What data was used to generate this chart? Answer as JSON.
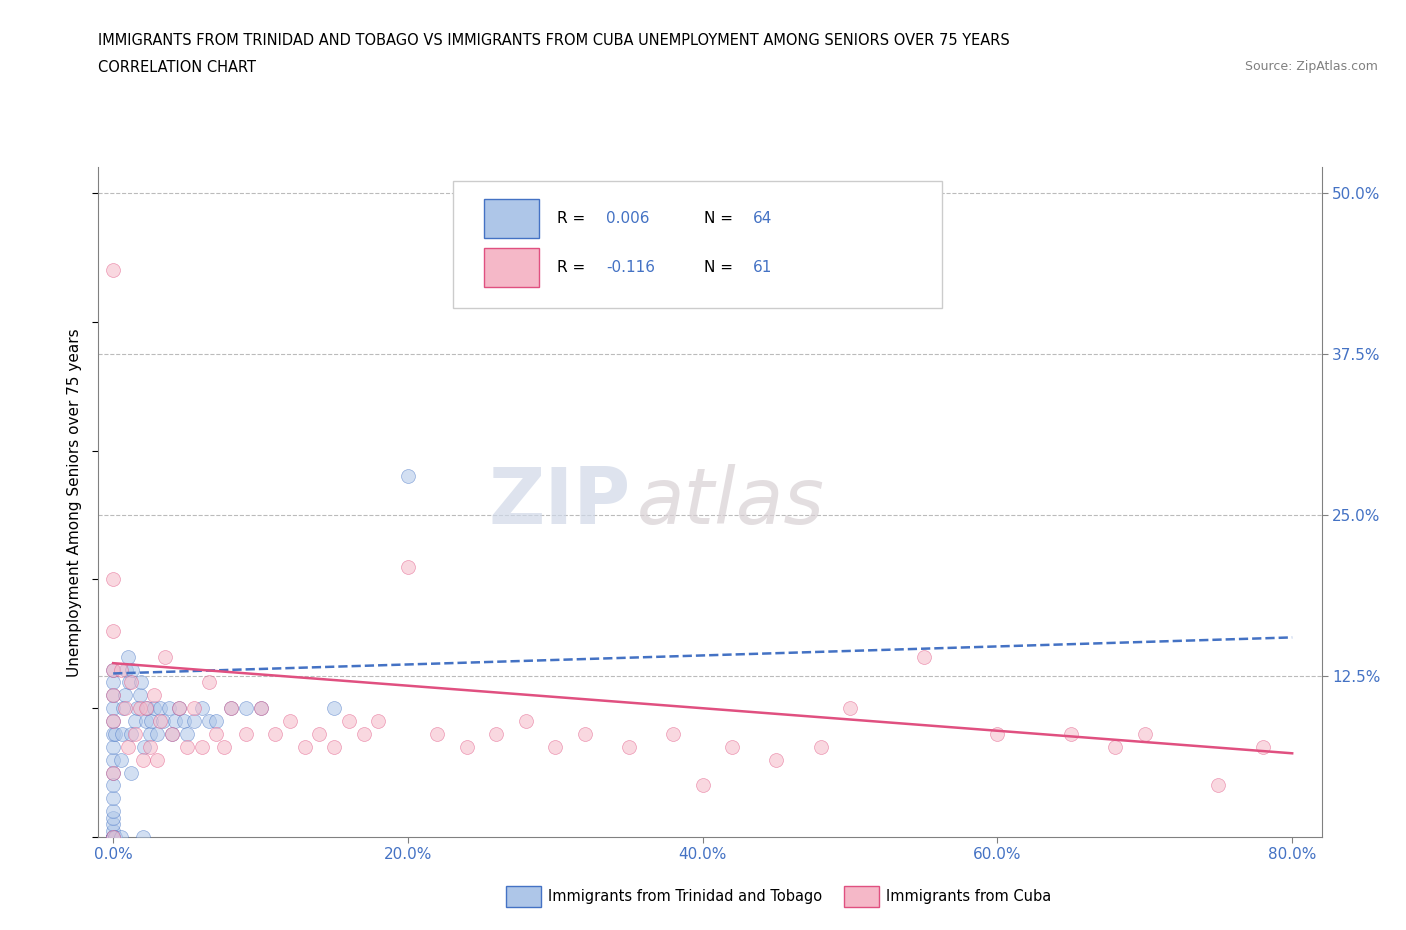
{
  "title_line1": "IMMIGRANTS FROM TRINIDAD AND TOBAGO VS IMMIGRANTS FROM CUBA UNEMPLOYMENT AMONG SENIORS OVER 75 YEARS",
  "title_line2": "CORRELATION CHART",
  "source": "Source: ZipAtlas.com",
  "ylabel": "Unemployment Among Seniors over 75 years",
  "watermark_zip": "ZIP",
  "watermark_atlas": "atlas",
  "legend_blue_label": "Immigrants from Trinidad and Tobago",
  "legend_pink_label": "Immigrants from Cuba",
  "legend_blue_R": "R = 0.006",
  "legend_blue_N": "N = 64",
  "legend_pink_R": "R = -0.116",
  "legend_pink_N": "N = 61",
  "blue_fill": "#aec6e8",
  "pink_fill": "#f5b8c8",
  "blue_edge": "#4472C4",
  "pink_edge": "#E05080",
  "blue_line_color": "#4472C4",
  "pink_line_color": "#E05080",
  "R_text_color": "#4472C4",
  "N_text_color": "#4472C4",
  "ytick_color": "#4472C4",
  "xtick_color": "#4472C4",
  "xlim": [
    -0.01,
    0.82
  ],
  "ylim": [
    0.0,
    0.52
  ],
  "xticks": [
    0.0,
    0.2,
    0.4,
    0.6,
    0.8
  ],
  "xtick_labels": [
    "0.0%",
    "20.0%",
    "40.0%",
    "60.0%",
    "80.0%"
  ],
  "ytick_labels": [
    "50.0%",
    "37.5%",
    "25.0%",
    "12.5%"
  ],
  "yticks": [
    0.5,
    0.375,
    0.25,
    0.125
  ],
  "blue_x": [
    0.0,
    0.0,
    0.0,
    0.0,
    0.0,
    0.0,
    0.0,
    0.0,
    0.0,
    0.0,
    0.0,
    0.0,
    0.0,
    0.0,
    0.0,
    0.0,
    0.0,
    0.0,
    0.0,
    0.0,
    0.0,
    0.0,
    0.001,
    0.001,
    0.005,
    0.005,
    0.006,
    0.007,
    0.008,
    0.009,
    0.01,
    0.011,
    0.012,
    0.012,
    0.013,
    0.015,
    0.016,
    0.018,
    0.019,
    0.02,
    0.021,
    0.022,
    0.023,
    0.025,
    0.026,
    0.028,
    0.03,
    0.032,
    0.034,
    0.038,
    0.04,
    0.042,
    0.045,
    0.048,
    0.05,
    0.055,
    0.06,
    0.065,
    0.07,
    0.08,
    0.09,
    0.1,
    0.15,
    0.2
  ],
  "blue_y": [
    0.0,
    0.0,
    0.0,
    0.0,
    0.0,
    0.0,
    0.0,
    0.005,
    0.01,
    0.015,
    0.02,
    0.03,
    0.04,
    0.05,
    0.06,
    0.07,
    0.08,
    0.09,
    0.1,
    0.11,
    0.12,
    0.13,
    0.0,
    0.08,
    0.0,
    0.06,
    0.08,
    0.1,
    0.11,
    0.13,
    0.14,
    0.12,
    0.05,
    0.08,
    0.13,
    0.09,
    0.1,
    0.11,
    0.12,
    0.0,
    0.07,
    0.09,
    0.1,
    0.08,
    0.09,
    0.1,
    0.08,
    0.1,
    0.09,
    0.1,
    0.08,
    0.09,
    0.1,
    0.09,
    0.08,
    0.09,
    0.1,
    0.09,
    0.09,
    0.1,
    0.1,
    0.1,
    0.1,
    0.28
  ],
  "pink_x": [
    0.0,
    0.0,
    0.0,
    0.0,
    0.0,
    0.0,
    0.0,
    0.0,
    0.005,
    0.008,
    0.01,
    0.012,
    0.015,
    0.018,
    0.02,
    0.022,
    0.025,
    0.028,
    0.03,
    0.032,
    0.035,
    0.04,
    0.045,
    0.05,
    0.055,
    0.06,
    0.065,
    0.07,
    0.075,
    0.08,
    0.09,
    0.1,
    0.11,
    0.12,
    0.13,
    0.14,
    0.15,
    0.16,
    0.17,
    0.18,
    0.2,
    0.22,
    0.24,
    0.26,
    0.28,
    0.3,
    0.32,
    0.35,
    0.38,
    0.4,
    0.42,
    0.45,
    0.48,
    0.5,
    0.55,
    0.6,
    0.65,
    0.68,
    0.7,
    0.75,
    0.78
  ],
  "pink_y": [
    0.0,
    0.05,
    0.09,
    0.11,
    0.13,
    0.16,
    0.2,
    0.44,
    0.13,
    0.1,
    0.07,
    0.12,
    0.08,
    0.1,
    0.06,
    0.1,
    0.07,
    0.11,
    0.06,
    0.09,
    0.14,
    0.08,
    0.1,
    0.07,
    0.1,
    0.07,
    0.12,
    0.08,
    0.07,
    0.1,
    0.08,
    0.1,
    0.08,
    0.09,
    0.07,
    0.08,
    0.07,
    0.09,
    0.08,
    0.09,
    0.21,
    0.08,
    0.07,
    0.08,
    0.09,
    0.07,
    0.08,
    0.07,
    0.08,
    0.04,
    0.07,
    0.06,
    0.07,
    0.1,
    0.14,
    0.08,
    0.08,
    0.07,
    0.08,
    0.04,
    0.07
  ],
  "blue_trend": [
    0.0,
    0.8,
    0.127,
    0.155
  ],
  "pink_trend": [
    0.0,
    0.8,
    0.135,
    0.065
  ],
  "marker_size": 100,
  "alpha": 0.55
}
